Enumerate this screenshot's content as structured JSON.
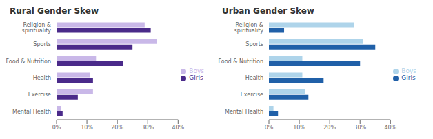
{
  "chart_data": [
    {
      "type": "bar",
      "orientation": "horizontal",
      "title": "Rural Gender Skew",
      "categories": [
        "Religion &\nspirituality",
        "Sports",
        "Food & Nutrition",
        "Health",
        "Exercise",
        "Mental Health"
      ],
      "series": [
        {
          "name": "Boys",
          "color": "#c9b8e8",
          "values": [
            29,
            33,
            13,
            11,
            12,
            1.5
          ]
        },
        {
          "name": "Girls",
          "color": "#4a2a8a",
          "values": [
            31,
            25,
            22,
            12,
            7,
            2
          ]
        }
      ],
      "xlim": [
        0,
        40
      ],
      "xticks": [
        {
          "value": 0,
          "label": "0%"
        },
        {
          "value": 10,
          "label": "10%"
        },
        {
          "value": 20,
          "label": "20%"
        },
        {
          "value": 30,
          "label": "30%"
        },
        {
          "value": 40,
          "label": "40%"
        }
      ],
      "grid": false,
      "legend": "right"
    },
    {
      "type": "bar",
      "orientation": "horizontal",
      "title": "Urban Gender Skew",
      "categories": [
        "Religion &\nspirituality",
        "Sports",
        "Food & Nutrition",
        "Health",
        "Exercise",
        "Mental Health"
      ],
      "series": [
        {
          "name": "Boys",
          "color": "#aed4ea",
          "values": [
            28,
            31,
            11,
            11,
            12,
            1.5
          ]
        },
        {
          "name": "Girls",
          "color": "#2060a8",
          "values": [
            5,
            35,
            30,
            18,
            13,
            3
          ]
        }
      ],
      "xlim": [
        0,
        40
      ],
      "xticks": [
        {
          "value": 0,
          "label": "0%"
        },
        {
          "value": 10,
          "label": "10%"
        },
        {
          "value": 20,
          "label": "20%"
        },
        {
          "value": 30,
          "label": "30%"
        },
        {
          "value": 40,
          "label": "40%"
        }
      ],
      "grid": false,
      "legend": "right"
    }
  ]
}
